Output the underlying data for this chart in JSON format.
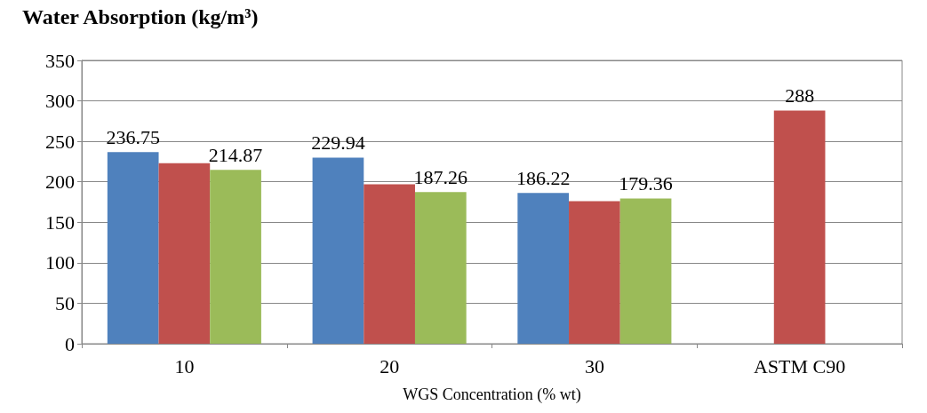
{
  "chart_data": {
    "type": "bar",
    "title": "Water Absorption (kg/m³)",
    "xlabel": "WGS Concentration (% wt)",
    "categories": [
      "10",
      "20",
      "30",
      "ASTM C90"
    ],
    "series": [
      {
        "color": "#4f81bd",
        "values": [
          236.75,
          229.94,
          186.22,
          null
        ],
        "value_labels": [
          "236.75",
          "229.94",
          "186.22",
          null
        ]
      },
      {
        "color": "#c0504d",
        "values": [
          223,
          197,
          176,
          288
        ],
        "value_labels": [
          null,
          null,
          null,
          "288"
        ]
      },
      {
        "color": "#9bbb59",
        "values": [
          214.87,
          187.26,
          179.36,
          null
        ],
        "value_labels": [
          "214.87",
          "187.26",
          "179.36",
          null
        ]
      }
    ],
    "ylim": [
      0,
      350
    ],
    "yticks": [
      0,
      50,
      100,
      150,
      200,
      250,
      300,
      350
    ],
    "grid": "y"
  }
}
